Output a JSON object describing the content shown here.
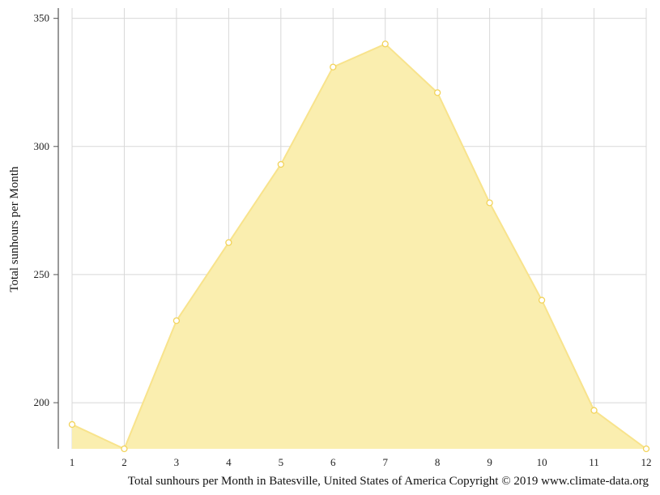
{
  "chart_data": {
    "type": "area",
    "x": [
      1,
      2,
      3,
      4,
      5,
      6,
      7,
      8,
      9,
      10,
      11,
      12
    ],
    "series": [
      {
        "values": [
          191.5,
          182,
          232,
          262.5,
          293,
          331,
          340,
          321,
          278,
          240,
          197,
          182
        ]
      }
    ],
    "title": "",
    "xlabel": "",
    "ylabel": "Total sunhours per Month",
    "caption": "Total sunhours per Month in Batesville, United States of America Copyright © 2019 www.climate-data.org",
    "xlim": [
      1,
      12
    ],
    "ylim": [
      182,
      354
    ],
    "yticks": [
      200,
      250,
      300,
      350
    ],
    "xticks": [
      1,
      2,
      3,
      4,
      5,
      6,
      7,
      8,
      9,
      10,
      11,
      12
    ],
    "grid": true,
    "colors": {
      "fill": "#faeeaf",
      "line": "#f8e38c",
      "marker_stroke": "#f2d35a",
      "grid": "#d8d8d8",
      "axis": "#555555"
    }
  }
}
